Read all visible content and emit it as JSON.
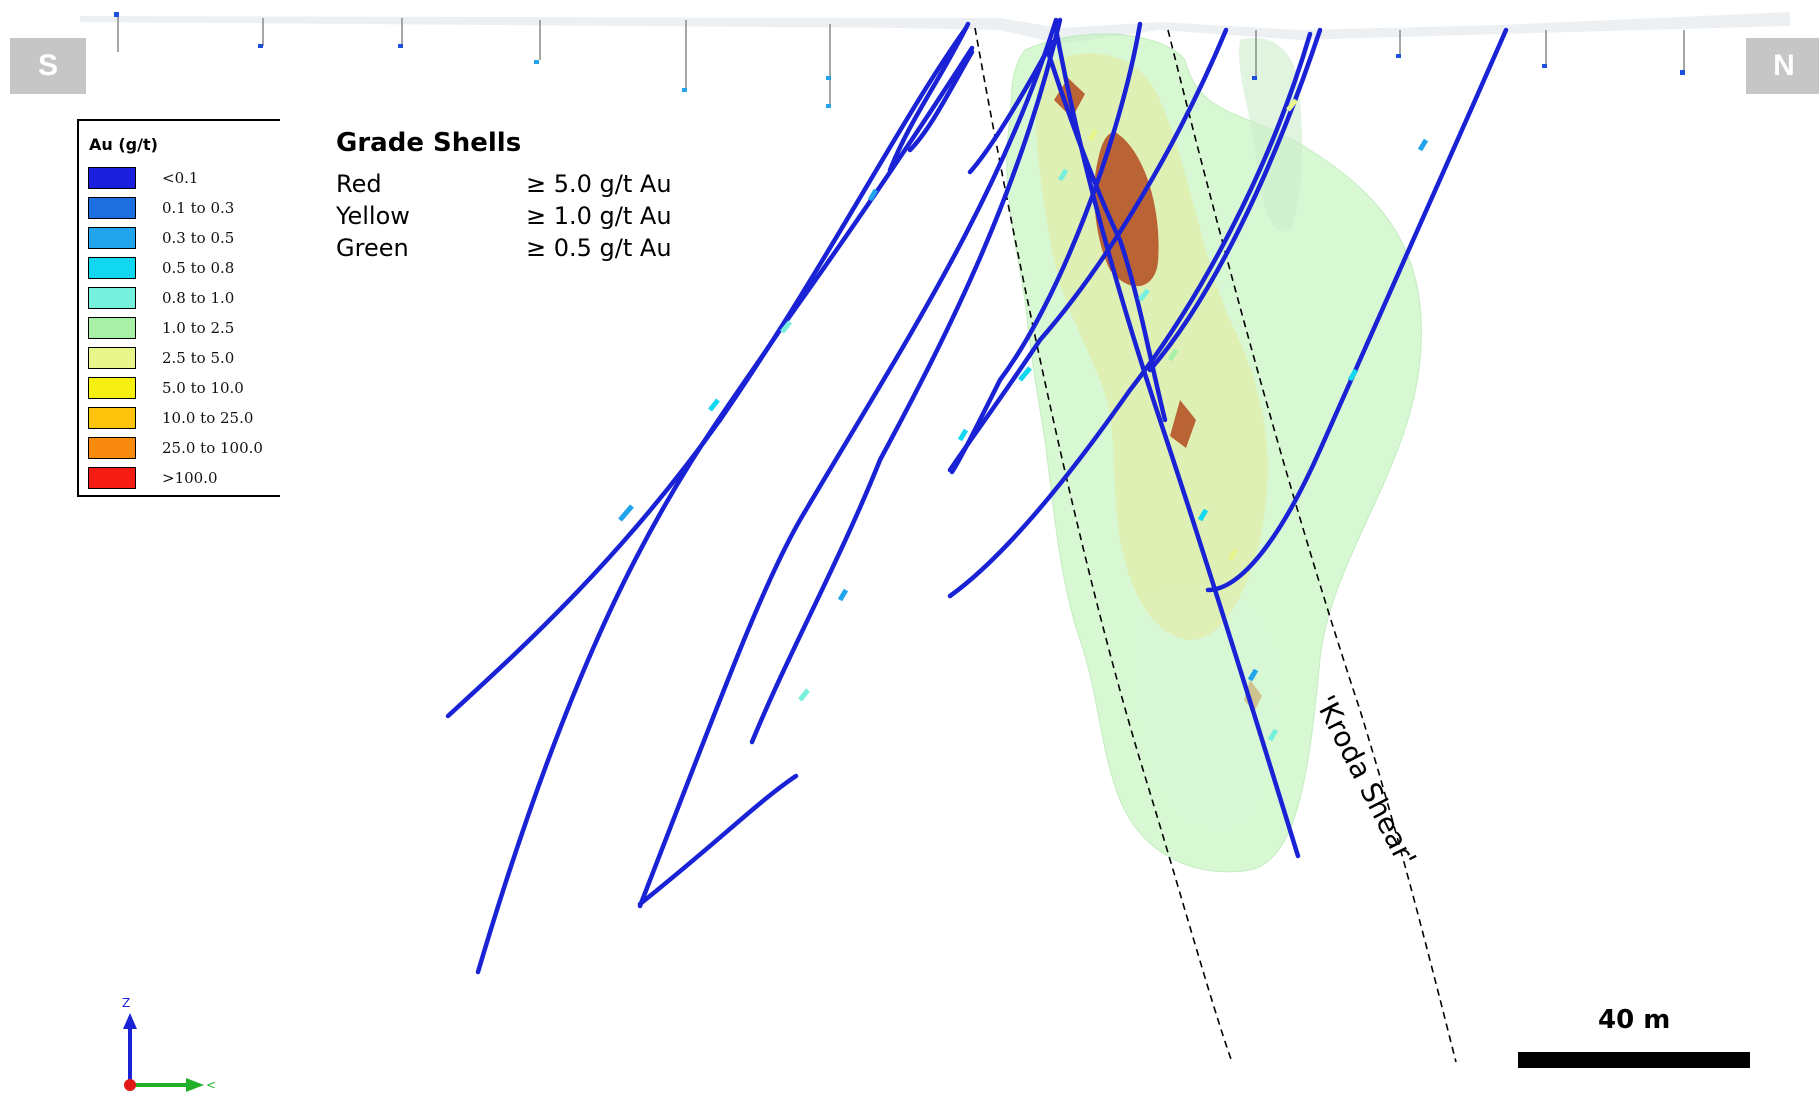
{
  "orientation": {
    "south_label": "S",
    "north_label": "N"
  },
  "legend": {
    "title": "Au (g/t)",
    "items": [
      {
        "label": "<0.1",
        "color": "#1a1fdc"
      },
      {
        "label": "0.1 to 0.3",
        "color": "#1d6fe0"
      },
      {
        "label": "0.3 to 0.5",
        "color": "#22a4ec"
      },
      {
        "label": "0.5 to 0.8",
        "color": "#11d7f0"
      },
      {
        "label": "0.8 to 1.0",
        "color": "#76f0dc"
      },
      {
        "label": "1.0 to 2.5",
        "color": "#a8f0a8"
      },
      {
        "label": "2.5 to 5.0",
        "color": "#e8f58a"
      },
      {
        "label": "5.0 to 10.0",
        "color": "#f5ef12"
      },
      {
        "label": "10.0 to 25.0",
        "color": "#fbc30c"
      },
      {
        "label": "25.0 to 100.0",
        "color": "#f98a10"
      },
      {
        "label": ">100.0",
        "color": "#f51c14"
      }
    ]
  },
  "grade_shells": {
    "title": "Grade Shells",
    "rows": [
      {
        "name": "Red",
        "value": "≥ 5.0 g/t Au"
      },
      {
        "name": "Yellow",
        "value": "≥ 1.0 g/t Au"
      },
      {
        "name": "Green",
        "value": "≥ 0.5 g/t Au"
      }
    ]
  },
  "shear_label": "'Kroda Shear'",
  "scale_bar": {
    "label": "40 m"
  },
  "axes": {
    "z_label": "Z",
    "y_label": "<"
  },
  "colors": {
    "drill_trace": "#1a22d6",
    "green_shell": "#b8f2b0",
    "yellow_shell": "#e6ea9a",
    "red_shell": "#b44a1e",
    "label_box": "#c6c6c6"
  }
}
